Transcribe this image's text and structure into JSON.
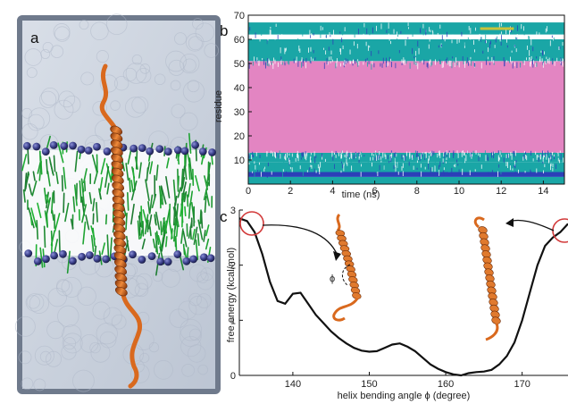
{
  "panels": {
    "a": {
      "label": "a"
    },
    "b": {
      "label": "b"
    },
    "c": {
      "label": "c"
    }
  },
  "phi_symbol": "ϕ",
  "colors": {
    "helix_pink": "#e385c2",
    "coil_teal": "#1aa6a6",
    "turn_white": "#ffffff",
    "bridge_blue": "#2b3fb8",
    "extra_yellow": "#c8c23a",
    "curve": "#111111",
    "circle": "#d23a3a",
    "protein": "#d9691e",
    "lipid_tail": "#2a9a3a",
    "lipid_head": "#3a3f8a",
    "water": "#c9d1dc"
  },
  "chart_data": [
    {
      "panel": "b",
      "type": "heatmap",
      "xlabel": "time (ns)",
      "ylabel": "residue",
      "xlim": [
        0,
        15
      ],
      "ylim": [
        0,
        70
      ],
      "xticks": [
        0,
        2,
        4,
        6,
        8,
        10,
        12,
        14
      ],
      "yticks": [
        10,
        20,
        30,
        40,
        50,
        60,
        70
      ],
      "bands": [
        {
          "from": 0,
          "to": 3,
          "state": "coil"
        },
        {
          "from": 3,
          "to": 5,
          "state": "bridge"
        },
        {
          "from": 5,
          "to": 9,
          "state": "coil"
        },
        {
          "from": 9,
          "to": 13,
          "state": "coil"
        },
        {
          "from": 13,
          "to": 51,
          "state": "helix"
        },
        {
          "from": 51,
          "to": 60,
          "state": "coil"
        },
        {
          "from": 60,
          "to": 62,
          "state": "turn"
        },
        {
          "from": 62,
          "to": 67,
          "state": "coil"
        }
      ]
    },
    {
      "panel": "c",
      "type": "line",
      "xlabel": "helix bending angle ϕ (degree)",
      "ylabel": "free energy (kcal/mol)",
      "xlim": [
        133,
        176
      ],
      "ylim": [
        0,
        3
      ],
      "xticks": [
        140,
        150,
        160,
        170
      ],
      "yticks": [
        0,
        1,
        2,
        3
      ],
      "x": [
        133,
        134,
        135,
        136,
        137,
        138,
        139,
        140,
        141,
        142,
        143,
        144,
        145,
        146,
        147,
        148,
        149,
        150,
        151,
        152,
        153,
        154,
        155,
        156,
        157,
        158,
        159,
        160,
        161,
        162,
        163,
        164,
        165,
        166,
        167,
        168,
        169,
        170,
        171,
        172,
        173,
        174,
        175,
        176
      ],
      "y": [
        2.85,
        2.8,
        2.6,
        2.2,
        1.7,
        1.35,
        1.3,
        1.48,
        1.5,
        1.3,
        1.1,
        0.95,
        0.8,
        0.68,
        0.58,
        0.5,
        0.45,
        0.43,
        0.44,
        0.5,
        0.56,
        0.58,
        0.52,
        0.44,
        0.32,
        0.2,
        0.12,
        0.06,
        0.02,
        0.0,
        0.04,
        0.06,
        0.07,
        0.1,
        0.2,
        0.35,
        0.6,
        1.0,
        1.5,
        2.0,
        2.35,
        2.5,
        2.6,
        2.75
      ]
    }
  ]
}
